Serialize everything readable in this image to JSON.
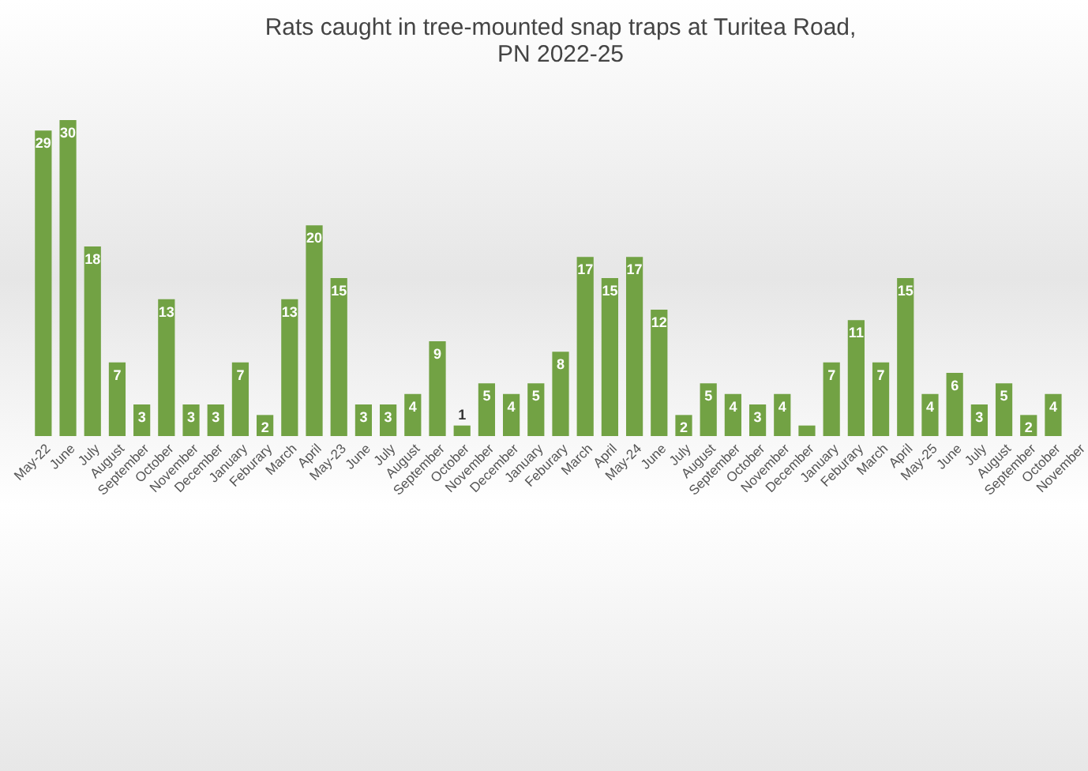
{
  "chart_data": {
    "type": "bar",
    "title": [
      "Rats caught in tree-mounted snap traps at Turitea Road,",
      "PN 2022-25"
    ],
    "categories": [
      "May-22",
      "June",
      "July",
      "August",
      "September",
      "October",
      "November",
      "December",
      "January",
      "Feburary",
      "March",
      "April",
      "May-23",
      "June",
      "July",
      "August",
      "September",
      "October",
      "November",
      "December",
      "January",
      "Feburary",
      "March",
      "April",
      "May-24",
      "June",
      "July",
      "August",
      "September",
      "October",
      "November",
      "December",
      "January",
      "Feburary",
      "March",
      "April",
      "May-25",
      "June",
      "July",
      "August",
      "September",
      "October",
      "November"
    ],
    "values": [
      29,
      30,
      18,
      7,
      3,
      13,
      3,
      3,
      7,
      2,
      13,
      20,
      15,
      3,
      3,
      4,
      9,
      1,
      5,
      4,
      5,
      8,
      17,
      15,
      17,
      12,
      2,
      5,
      4,
      3,
      4,
      1,
      7,
      11,
      7,
      15,
      4,
      6,
      3,
      5,
      2,
      4,
      0
    ],
    "value_labels": [
      "29",
      "30",
      "18",
      "7",
      "3",
      "13",
      "3",
      "3",
      "7",
      "2",
      "13",
      "20",
      "15",
      "3",
      "3",
      "4",
      "9",
      "1",
      "5",
      "4",
      "5",
      "8",
      "17",
      "15",
      "17",
      "12",
      "2",
      "5",
      "4",
      "3",
      "4",
      null,
      "7",
      "11",
      "7",
      "15",
      "4",
      "6",
      "3",
      "5",
      "2",
      "4",
      null
    ],
    "color": "#72a244",
    "tick_labels": "x",
    "ylim": [
      0,
      30
    ]
  }
}
